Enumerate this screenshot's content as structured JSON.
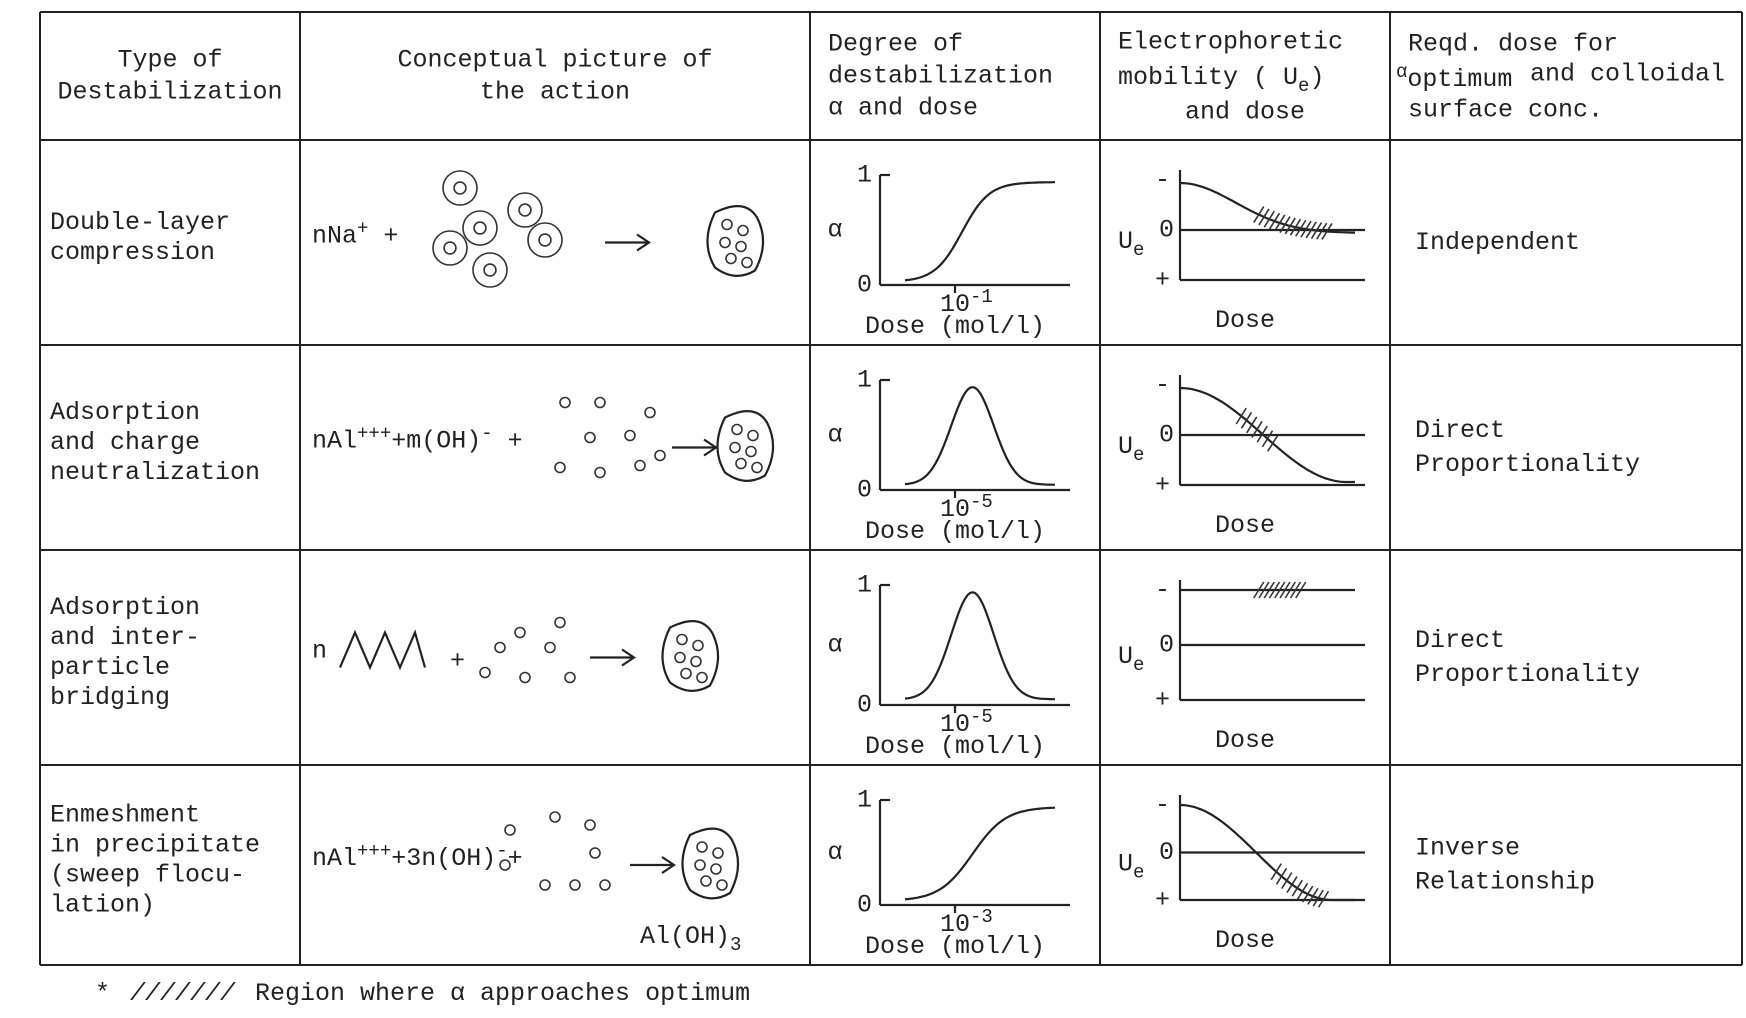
{
  "header": {
    "type": [
      "Type of",
      "Destabilization"
    ],
    "picture": [
      "Conceptual picture of",
      "the action"
    ],
    "degree": [
      "Degree of",
      "destabilization",
      "α and dose"
    ],
    "mobility": {
      "line1": "Electrophoretic",
      "line2": "mobility ( U",
      "sub": "e",
      "close": ")",
      "line3": "and dose"
    },
    "dose": {
      "line1": "Reqd. dose for",
      "alpha": "α",
      "line2": "optimum",
      "line2b": "and colloidal",
      "line3": "surface conc."
    }
  },
  "rows": [
    {
      "type": [
        "Double-layer",
        "compression"
      ],
      "picture": {
        "parts": [
          {
            "t": "nNa"
          },
          {
            "sup": "+"
          },
          {
            "t": " +"
          }
        ]
      },
      "alpha": {
        "top": "1",
        "bottom": "0",
        "label": "α",
        "tick": "10",
        "exp": "-1",
        "xlabel": "Dose (mol/l)"
      },
      "mobility": {
        "minus": "-",
        "zero": "0",
        "plus": "+",
        "label": "U",
        "sub": "e",
        "xlabel": "Dose"
      },
      "dose": [
        "Independent"
      ]
    },
    {
      "type": [
        "Adsorption",
        " and charge",
        " neutralization"
      ],
      "picture": {
        "parts": [
          {
            "t": "nAl"
          },
          {
            "sup": "+++"
          },
          {
            "t": "+m(OH)"
          },
          {
            "sup": "-"
          },
          {
            "t": " +"
          }
        ]
      },
      "alpha": {
        "top": "1",
        "bottom": "0",
        "label": "α",
        "tick": "10",
        "exp": "-5",
        "xlabel": "Dose (mol/l)"
      },
      "mobility": {
        "minus": "-",
        "zero": "0",
        "plus": "+",
        "label": "U",
        "sub": "e",
        "xlabel": "Dose"
      },
      "dose": [
        "Direct",
        "Proportionality"
      ]
    },
    {
      "type": [
        "Adsorption",
        " and inter-",
        " particle",
        " bridging"
      ],
      "picture": {
        "parts": [
          {
            "t": "n"
          }
        ],
        "after": "+"
      },
      "alpha": {
        "top": "1",
        "bottom": "0",
        "label": "α",
        "tick": "10",
        "exp": "-5",
        "xlabel": "Dose (mol/l)"
      },
      "mobility": {
        "minus": "-",
        "zero": "0",
        "plus": "+",
        "label": "U",
        "sub": "e",
        "xlabel": "Dose"
      },
      "dose": [
        "Direct",
        "Proportionality"
      ]
    },
    {
      "type": [
        "Enmeshment",
        " in precipitate",
        "(sweep flocu-",
        " lation)"
      ],
      "picture": {
        "parts": [
          {
            "t": "nAl"
          },
          {
            "sup": "+++"
          },
          {
            "t": "+3n(OH)"
          },
          {
            "sup": "-"
          },
          {
            "t": "+"
          }
        ],
        "product": {
          "t": "Al(OH)",
          "sub": "3"
        }
      },
      "alpha": {
        "top": "1",
        "bottom": "0",
        "label": "α",
        "tick": "10",
        "exp": "-3",
        "xlabel": "Dose (mol/l)"
      },
      "mobility": {
        "minus": "-",
        "zero": "0",
        "plus": "+",
        "label": "U",
        "sub": "e",
        "xlabel": "Dose"
      },
      "dose": [
        "Inverse",
        "Relationship"
      ]
    }
  ],
  "footnote": {
    "marker": "*",
    "hatch": "///////",
    "text": "Region where α approaches optimum"
  }
}
